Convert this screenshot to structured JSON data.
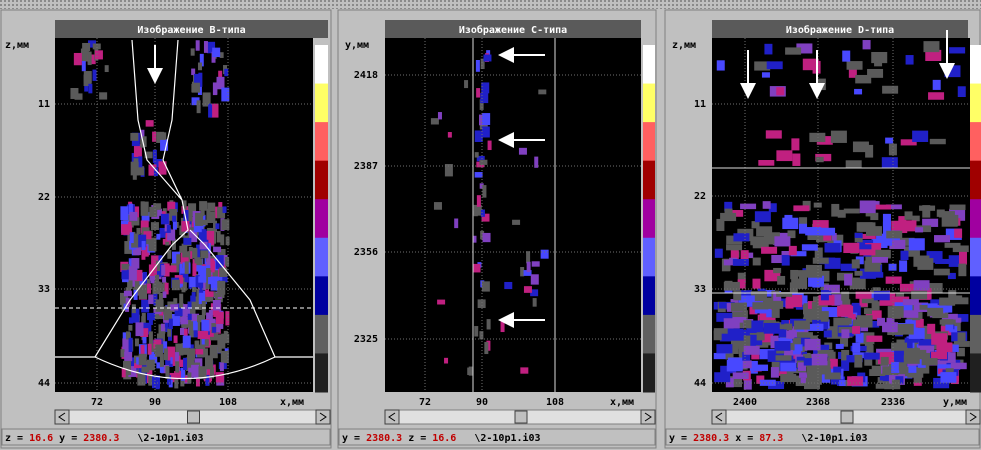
{
  "panels": [
    {
      "title": "Изображение В-типа",
      "y_axis_label": "z,мм",
      "y_ticks": [
        "11",
        "22",
        "33",
        "44"
      ],
      "x_ticks": [
        "72",
        "90",
        "108"
      ],
      "x_axis_label": "x,мм",
      "status": [
        {
          "label": "z =",
          "value": "16.6"
        },
        {
          "label": "y =",
          "value": "2380.3"
        }
      ],
      "file": "\\2-10p1.i03"
    },
    {
      "title": "Изображение С-типа",
      "y_axis_label": "y,мм",
      "y_ticks": [
        "2418",
        "2387",
        "2356",
        "2325"
      ],
      "x_ticks": [
        "72",
        "90",
        "108"
      ],
      "x_axis_label": "x,мм",
      "status": [
        {
          "label": "y =",
          "value": "2380.3"
        },
        {
          "label": "z =",
          "value": "16.6"
        }
      ],
      "file": "\\2-10p1.i03"
    },
    {
      "title": "Изображение D-типа",
      "y_axis_label": "z,мм",
      "y_ticks": [
        "11",
        "22",
        "33",
        "44"
      ],
      "x_ticks": [
        "2400",
        "2368",
        "2336"
      ],
      "x_axis_label": "y,мм",
      "status": [
        {
          "label": "y =",
          "value": "2380.3"
        },
        {
          "label": "x =",
          "value": "87.3"
        }
      ],
      "file": "\\2-10p1.i03"
    }
  ]
}
